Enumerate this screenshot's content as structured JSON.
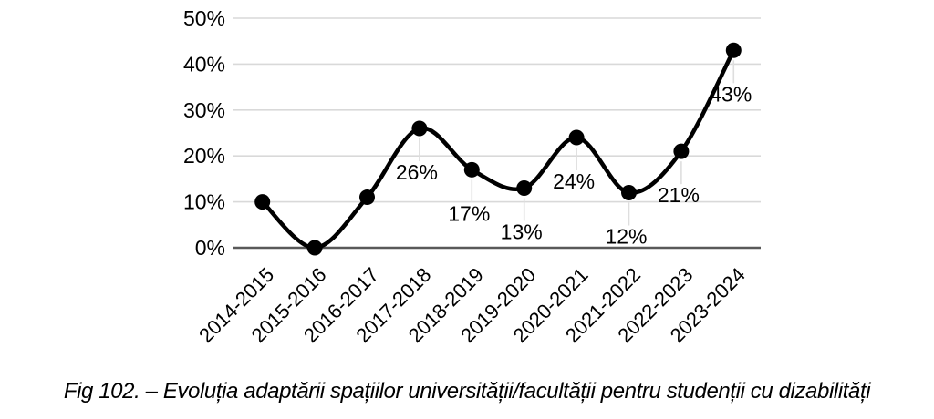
{
  "caption": "Fig 102. – Evoluția adaptării spațiilor universității/facultății pentru studenții cu dizabilități",
  "chart_data": {
    "type": "line",
    "title": "",
    "xlabel": "",
    "ylabel": "",
    "categories": [
      "2014-2015",
      "2015-2016",
      "2016-2017",
      "2017-2018",
      "2018-2019",
      "2019-2020",
      "2020-2021",
      "2021-2022",
      "2022-2023",
      "2023-2024"
    ],
    "values": [
      10,
      0,
      11,
      26,
      17,
      13,
      24,
      12,
      21,
      43
    ],
    "data_labels": [
      "",
      "",
      "",
      "26%",
      "17%",
      "13%",
      "24%",
      "12%",
      "21%",
      "43%"
    ],
    "ylim": [
      0,
      50
    ],
    "ytick_step": 10,
    "yticks": [
      "0%",
      "10%",
      "20%",
      "30%",
      "40%",
      "50%"
    ],
    "grid": "horizontal",
    "legend": "none",
    "smooth": true,
    "marker": "circle",
    "colors": {
      "line": "#000000",
      "marker": "#000000",
      "grid": "#d9d9d9",
      "axis": "#595959",
      "text": "#000000",
      "leader": "#dedede"
    }
  }
}
